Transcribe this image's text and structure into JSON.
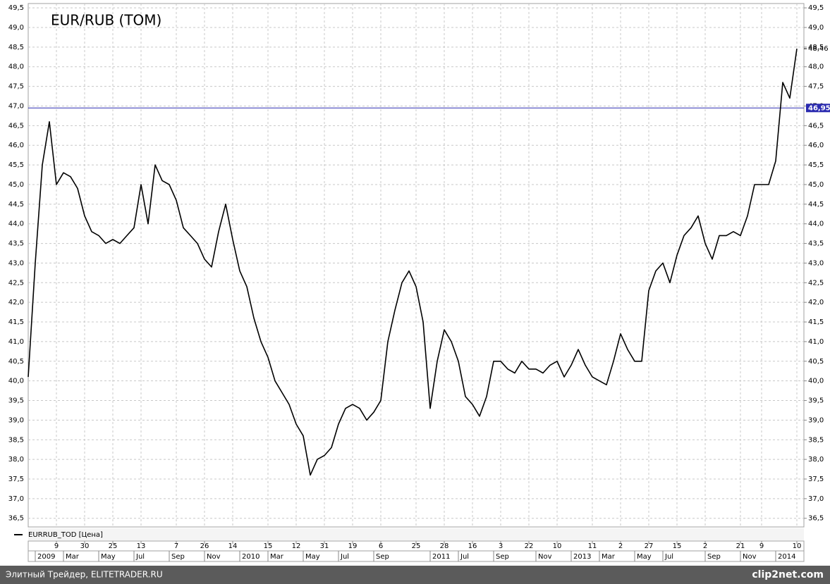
{
  "chart_data": {
    "type": "line",
    "title": "EUR/RUB (TOM)",
    "series": [
      {
        "name": "EURRUB_TOD [Цена]",
        "color": "#000000",
        "values": [
          40.1,
          43.0,
          45.5,
          46.6,
          45.0,
          45.3,
          45.2,
          44.9,
          44.2,
          43.8,
          43.7,
          43.5,
          43.6,
          43.5,
          43.7,
          43.9,
          45.0,
          44.0,
          45.5,
          45.1,
          45.0,
          44.6,
          43.9,
          43.7,
          43.5,
          43.1,
          42.9,
          43.8,
          44.5,
          43.6,
          42.8,
          42.4,
          41.6,
          41.0,
          40.6,
          40.0,
          39.7,
          39.4,
          38.9,
          38.6,
          37.6,
          38.0,
          38.1,
          38.3,
          38.9,
          39.3,
          39.4,
          39.3,
          39.0,
          39.2,
          39.5,
          41.0,
          41.8,
          42.5,
          42.8,
          42.4,
          41.5,
          39.3,
          40.5,
          41.3,
          41.0,
          40.5,
          39.6,
          39.4,
          39.1,
          39.6,
          40.5,
          40.5,
          40.3,
          40.2,
          40.5,
          40.3,
          40.3,
          40.2,
          40.4,
          40.5,
          40.1,
          40.4,
          40.8,
          40.4,
          40.1,
          40.0,
          39.9,
          40.5,
          41.2,
          40.8,
          40.5,
          40.5,
          42.3,
          42.8,
          43.0,
          42.5,
          43.2,
          43.7,
          43.9,
          44.2,
          43.5,
          43.1,
          43.7,
          43.7,
          43.8,
          43.7,
          44.2,
          45.0,
          45.0,
          45.0,
          45.6,
          47.6,
          47.2,
          48.46
        ]
      }
    ],
    "last_label": "48,46",
    "categories": [
      null,
      null,
      null,
      null,
      "9",
      null,
      null,
      null,
      "30",
      null,
      null,
      null,
      "25",
      null,
      null,
      null,
      "13",
      null,
      null,
      null,
      null,
      "7",
      null,
      null,
      null,
      "26",
      null,
      null,
      null,
      "14",
      null,
      null,
      null,
      null,
      "15",
      null,
      null,
      null,
      "12",
      null,
      null,
      null,
      "31",
      null,
      null,
      null,
      "19",
      null,
      null,
      null,
      "6",
      null,
      null,
      null,
      null,
      "25",
      null,
      null,
      null,
      "28",
      null,
      null,
      null,
      "16",
      null,
      null,
      null,
      "3",
      null,
      null,
      null,
      "22",
      null,
      null,
      null,
      "10",
      null,
      null,
      null,
      null,
      "11",
      null,
      null,
      null,
      "2",
      null,
      null,
      null,
      "27",
      null,
      null,
      null,
      "15",
      null,
      null,
      null,
      "2",
      null,
      null,
      null,
      null,
      "21",
      null,
      null,
      "9",
      null,
      null,
      null,
      null,
      "10"
    ],
    "categories_row2": [
      null,
      null,
      "2009",
      null,
      null,
      null,
      "Mar",
      null,
      null,
      null,
      null,
      "May",
      null,
      null,
      null,
      null,
      "Jul",
      null,
      null,
      null,
      null,
      "Sep",
      null,
      null,
      null,
      null,
      "Nov",
      null,
      null,
      null,
      null,
      "2010",
      null,
      null,
      null,
      "Mar",
      null,
      null,
      null,
      null,
      "May",
      null,
      null,
      null,
      null,
      "Jul",
      null,
      null,
      null,
      null,
      "Sep",
      null,
      null,
      null,
      null,
      null,
      null,
      null,
      "2011",
      null,
      null,
      null,
      "Jul",
      null,
      null,
      null,
      null,
      "Sep",
      null,
      null,
      null,
      null,
      null,
      "Nov",
      null,
      null,
      null,
      null,
      "2013",
      null,
      null,
      null,
      "Mar",
      null,
      null,
      null,
      null,
      "May",
      null,
      null,
      null,
      "Jul",
      null,
      null,
      null,
      null,
      null,
      "Sep",
      null,
      null,
      null,
      null,
      "Nov",
      null,
      null,
      null,
      null,
      "2014",
      null,
      null
    ],
    "reference_line": {
      "value": 46.95,
      "label": "46,95",
      "color": "#2b2bb0"
    },
    "ylim": [
      36.28,
      49.61
    ],
    "yticks": [
      {
        "value": 36.5,
        "label": "36,5"
      },
      {
        "value": 37,
        "label": "37,0"
      },
      {
        "value": 37.5,
        "label": "37,5"
      },
      {
        "value": 38,
        "label": "38,0"
      },
      {
        "value": 38.5,
        "label": "38,5"
      },
      {
        "value": 39,
        "label": "39,0"
      },
      {
        "value": 39.5,
        "label": "39,5"
      },
      {
        "value": 40,
        "label": "40,0"
      },
      {
        "value": 40.5,
        "label": "40,5"
      },
      {
        "value": 41,
        "label": "41,0"
      },
      {
        "value": 41.5,
        "label": "41,5"
      },
      {
        "value": 42,
        "label": "42,0"
      },
      {
        "value": 42.5,
        "label": "42,5"
      },
      {
        "value": 43,
        "label": "43,0"
      },
      {
        "value": 43.5,
        "label": "43,5"
      },
      {
        "value": 44,
        "label": "44,0"
      },
      {
        "value": 44.5,
        "label": "44,5"
      },
      {
        "value": 45,
        "label": "45,0"
      },
      {
        "value": 45.5,
        "label": "45,5"
      },
      {
        "value": 46,
        "label": "46,0"
      },
      {
        "value": 46.5,
        "label": "46,5"
      },
      {
        "value": 47,
        "label": "47,0"
      },
      {
        "value": 47.5,
        "label": "47,5"
      },
      {
        "value": 48,
        "label": "48,0"
      },
      {
        "value": 48.5,
        "label": "48,5"
      },
      {
        "value": 49,
        "label": "49,0"
      },
      {
        "value": 49.5,
        "label": "49,5"
      }
    ],
    "grid": true
  },
  "footer": {
    "source": "Элитный Трейдер, ELITETRADER.RU",
    "watermark": "clip2net.com"
  }
}
